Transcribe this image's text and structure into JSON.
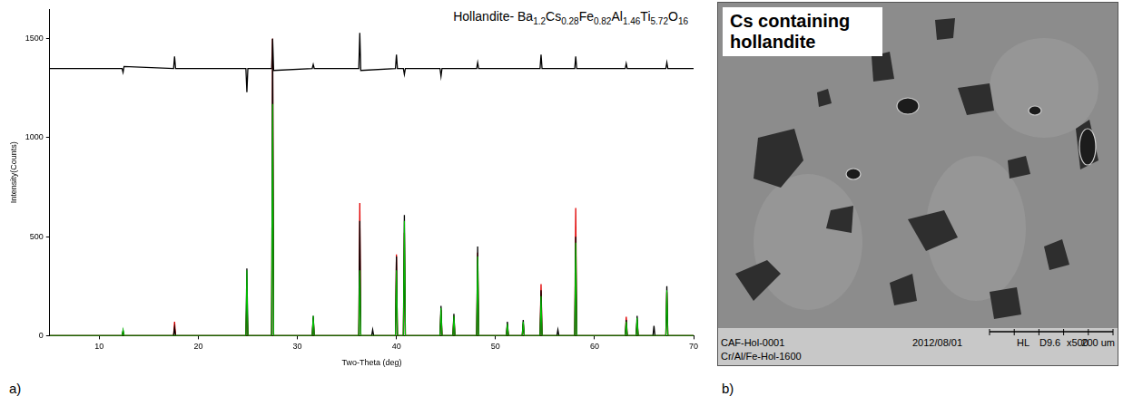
{
  "chart_data": {
    "type": "line",
    "title": "Hollandite- Ba1.2Cs0.28Fe0.82Al1.46Ti5.72O16",
    "x_label": "Two-Theta (deg)",
    "y_label": "Intensity(Counts)",
    "xlim": [
      5,
      70
    ],
    "xticks": [
      10,
      20,
      30,
      40,
      50,
      60,
      70
    ],
    "ylim": [
      0,
      1650
    ],
    "yticks": [
      0,
      500,
      1000,
      1500
    ],
    "grid": false,
    "series": [
      {
        "color": "#00c000",
        "x": [
          5,
          12.3,
          12.4,
          12.5,
          24.8,
          24.9,
          25.0,
          27.4,
          27.5,
          27.6,
          31.5,
          31.6,
          31.7,
          36.2,
          36.3,
          36.4,
          39.9,
          40.0,
          40.1,
          40.7,
          40.8,
          40.9,
          44.4,
          44.5,
          44.6,
          45.7,
          45.8,
          45.9,
          48.1,
          48.2,
          48.3,
          51.1,
          51.2,
          51.3,
          52.7,
          52.8,
          52.9,
          54.5,
          54.6,
          54.7,
          58.0,
          58.1,
          58.2,
          63.1,
          63.2,
          63.3,
          64.2,
          64.3,
          64.4,
          67.2,
          67.3,
          67.4,
          70
        ],
        "values": [
          0,
          0,
          30,
          0,
          0,
          330,
          0,
          0,
          1170,
          0,
          0,
          100,
          0,
          0,
          330,
          0,
          0,
          330,
          0,
          0,
          580,
          0,
          0,
          140,
          0,
          0,
          100,
          0,
          0,
          400,
          0,
          0,
          60,
          0,
          0,
          70,
          0,
          0,
          200,
          0,
          0,
          470,
          0,
          0,
          70,
          0,
          0,
          90,
          0,
          0,
          230,
          0,
          0
        ]
      },
      {
        "color": "#000000",
        "x": [
          5,
          12.3,
          12.4,
          12.5,
          17.5,
          17.6,
          17.7,
          24.8,
          24.9,
          25.0,
          27.4,
          27.5,
          27.6,
          31.5,
          31.6,
          31.7,
          36.2,
          36.3,
          36.4,
          37.5,
          37.6,
          37.7,
          39.9,
          40.0,
          40.1,
          40.7,
          40.8,
          40.9,
          44.4,
          44.5,
          44.6,
          45.7,
          45.8,
          45.9,
          48.1,
          48.2,
          48.3,
          51.1,
          51.2,
          51.3,
          52.7,
          52.8,
          52.9,
          54.5,
          54.6,
          54.7,
          56.2,
          56.3,
          56.4,
          58.0,
          58.1,
          58.2,
          63.1,
          63.2,
          63.3,
          64.2,
          64.3,
          64.4,
          65.9,
          66.0,
          66.1,
          67.2,
          67.3,
          67.4,
          70
        ],
        "values": [
          0,
          0,
          25,
          0,
          0,
          40,
          0,
          0,
          340,
          0,
          0,
          1500,
          0,
          0,
          100,
          0,
          0,
          580,
          0,
          0,
          30,
          0,
          0,
          400,
          0,
          0,
          610,
          0,
          0,
          150,
          0,
          0,
          110,
          0,
          0,
          450,
          0,
          0,
          70,
          0,
          0,
          80,
          0,
          0,
          230,
          0,
          0,
          30,
          0,
          0,
          500,
          0,
          0,
          80,
          0,
          0,
          100,
          0,
          0,
          50,
          0,
          0,
          250,
          0,
          0
        ]
      },
      {
        "color": "#e00000",
        "x": [
          5,
          12.3,
          12.4,
          12.5,
          17.5,
          17.6,
          17.7,
          24.8,
          24.9,
          25.0,
          27.4,
          27.5,
          27.6,
          31.5,
          31.6,
          31.7,
          36.2,
          36.3,
          36.4,
          39.9,
          40.0,
          40.1,
          40.7,
          40.8,
          40.9,
          44.4,
          44.5,
          44.6,
          45.7,
          45.8,
          45.9,
          48.1,
          48.2,
          48.3,
          51.1,
          51.2,
          51.3,
          52.7,
          52.8,
          52.9,
          54.5,
          54.6,
          54.7,
          58.0,
          58.1,
          58.2,
          63.1,
          63.2,
          63.3,
          64.2,
          64.3,
          64.4,
          67.2,
          67.3,
          67.4,
          70
        ],
        "values": [
          0,
          0,
          20,
          0,
          0,
          70,
          0,
          0,
          180,
          0,
          0,
          1500,
          0,
          0,
          90,
          0,
          0,
          670,
          0,
          0,
          410,
          0,
          0,
          520,
          0,
          0,
          130,
          0,
          0,
          100,
          0,
          0,
          420,
          0,
          0,
          60,
          0,
          0,
          60,
          0,
          0,
          260,
          0,
          0,
          645,
          0,
          0,
          95,
          0,
          0,
          80,
          0,
          0,
          220,
          0,
          0
        ]
      },
      {
        "color": "#000000",
        "x": [
          5,
          12.3,
          12.4,
          12.5,
          17.5,
          17.6,
          17.7,
          24.8,
          24.9,
          25.0,
          27.4,
          27.5,
          27.6,
          31.5,
          31.6,
          31.7,
          36.2,
          36.3,
          36.4,
          39.9,
          40.0,
          40.1,
          40.7,
          40.8,
          40.9,
          44.4,
          44.5,
          44.6,
          48.1,
          48.2,
          48.3,
          54.5,
          54.6,
          54.7,
          58.0,
          58.1,
          58.2,
          63.1,
          63.2,
          63.3,
          67.2,
          67.3,
          67.4,
          70
        ],
        "values": [
          1350,
          1350,
          1330,
          1360,
          1350,
          1410,
          1350,
          1350,
          1230,
          1350,
          1350,
          1500,
          1340,
          1350,
          1370,
          1350,
          1350,
          1530,
          1340,
          1350,
          1420,
          1350,
          1350,
          1320,
          1350,
          1350,
          1310,
          1350,
          1350,
          1380,
          1350,
          1350,
          1420,
          1350,
          1350,
          1410,
          1350,
          1350,
          1375,
          1350,
          1350,
          1380,
          1350,
          1350
        ]
      }
    ]
  },
  "panel_labels": [
    "a)",
    "b)"
  ],
  "image": {
    "title": "Cs containing hollandite",
    "info": [
      "CAF-Hol-0001",
      "2012/08/01",
      "HL",
      "D9.6",
      "x500",
      "200 um"
    ],
    "name": "Cr/Al/Fe-Hol-1600"
  }
}
